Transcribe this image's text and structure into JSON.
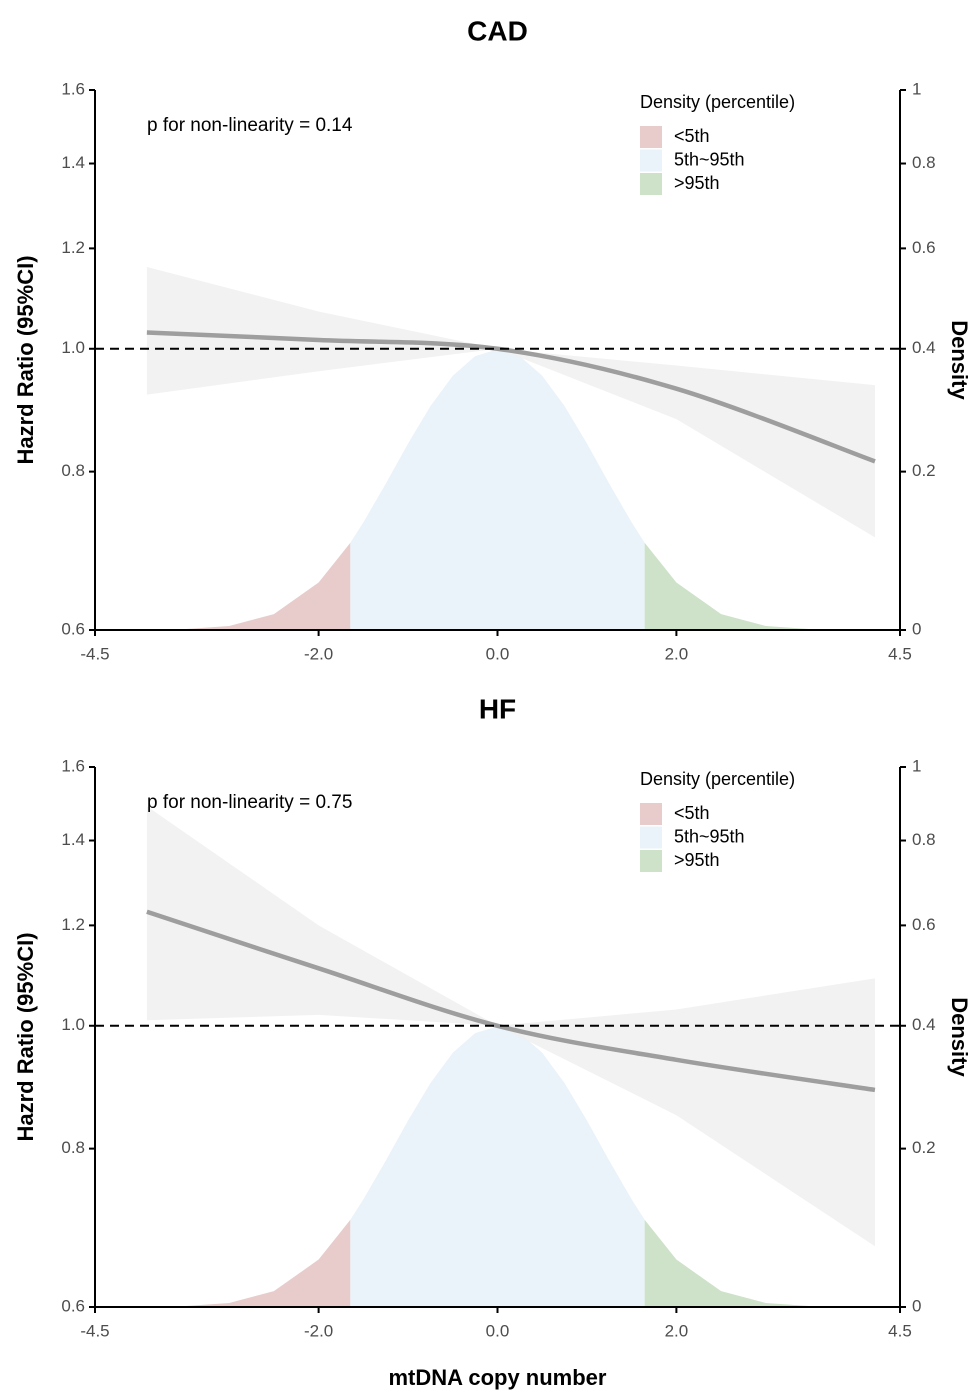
{
  "chart_data": [
    {
      "type": "spline",
      "title": "CAD",
      "annotation": "p for non-linearity = 0.14",
      "ylabel": "Hazrd Ratio (95%CI)",
      "y2label": "Density",
      "legend_title": "Density (percentile)",
      "log_y": true,
      "reference_line": 1,
      "xlim": [
        -4.5,
        4.5
      ],
      "xticks": [
        -4.5,
        {
          "value": -2,
          "label": "-2.0"
        },
        {
          "value": 0,
          "label": "0.0"
        },
        {
          "value": 2,
          "label": "2.0"
        },
        4.5
      ],
      "ylim": [
        0.6,
        1.6
      ],
      "yticks": [
        0.6,
        0.8,
        {
          "value": 1,
          "label": "1.0"
        },
        1.2,
        1.4,
        1.6
      ],
      "y2lim": [
        0,
        1
      ],
      "y2ticks": [
        0,
        0.2,
        0.4,
        0.6,
        0.8,
        1
      ],
      "curve": {
        "color": "#9e9e9e",
        "band_color": "#f0f0f0",
        "x": [
          -3.92,
          -2,
          0,
          2,
          4.22
        ],
        "values": [
          1.03,
          1.016,
          1,
          0.93,
          0.815
        ],
        "lower": [
          0.92,
          0.96,
          1,
          0.88,
          0.71
        ],
        "upper": [
          1.16,
          1.07,
          1,
          0.97,
          0.936
        ]
      },
      "density_series": [
        {
          "name": "<5th",
          "color": "#e8cccc",
          "x": [
            -3.5,
            -3,
            -2.5,
            -2,
            -1.645
          ],
          "values": [
            0.0009,
            0.0044,
            0.0175,
            0.054,
            0.103
          ]
        },
        {
          "name": "5th~95th",
          "color": "#eaf3f9",
          "x": [
            -1.645,
            -1.5,
            -1.25,
            -1,
            -0.75,
            -0.5,
            -0.25,
            0,
            0.25,
            0.5,
            0.75,
            1,
            1.25,
            1.5,
            1.645
          ],
          "values": [
            0.103,
            0.1295,
            0.1826,
            0.242,
            0.3011,
            0.3521,
            0.3867,
            0.3989,
            0.3867,
            0.3521,
            0.3011,
            0.242,
            0.1826,
            0.1295,
            0.103
          ]
        },
        {
          "name": ">95th",
          "color": "#cde2c8",
          "x": [
            1.645,
            2,
            2.5,
            3,
            3.5
          ],
          "values": [
            0.103,
            0.054,
            0.0175,
            0.0044,
            0.0009
          ]
        }
      ]
    },
    {
      "type": "spline",
      "title": "HF",
      "annotation": "p for non-linearity = 0.75",
      "ylabel": "Hazrd Ratio (95%CI)",
      "y2label": "Density",
      "legend_title": "Density (percentile)",
      "xlabel": "mtDNA copy number",
      "log_y": true,
      "reference_line": 1,
      "xlim": [
        -4.5,
        4.5
      ],
      "xticks": [
        -4.5,
        {
          "value": -2,
          "label": "-2.0"
        },
        {
          "value": 0,
          "label": "0.0"
        },
        {
          "value": 2,
          "label": "2.0"
        },
        4.5
      ],
      "ylim": [
        0.6,
        1.6
      ],
      "yticks": [
        0.6,
        0.8,
        {
          "value": 1,
          "label": "1.0"
        },
        1.2,
        1.4,
        1.6
      ],
      "y2lim": [
        0,
        1
      ],
      "y2ticks": [
        0,
        0.2,
        0.4,
        0.6,
        0.8,
        1
      ],
      "curve": {
        "color": "#9e9e9e",
        "band_color": "#f0f0f0",
        "x": [
          -3.92,
          -2,
          0,
          2,
          4.22
        ],
        "values": [
          1.23,
          1.11,
          1,
          0.94,
          0.89
        ],
        "lower": [
          1.01,
          1.02,
          1,
          0.85,
          0.67
        ],
        "upper": [
          1.49,
          1.2,
          1,
          1.03,
          1.09
        ]
      },
      "density_series": [
        {
          "name": "<5th",
          "color": "#e8cccc",
          "x": [
            -3.5,
            -3,
            -2.5,
            -2,
            -1.645
          ],
          "values": [
            0.0009,
            0.0044,
            0.0175,
            0.054,
            0.103
          ]
        },
        {
          "name": "5th~95th",
          "color": "#eaf3f9",
          "x": [
            -1.645,
            -1.5,
            -1.25,
            -1,
            -0.75,
            -0.5,
            -0.25,
            0,
            0.25,
            0.5,
            0.75,
            1,
            1.25,
            1.5,
            1.645
          ],
          "values": [
            0.103,
            0.1295,
            0.1826,
            0.242,
            0.3011,
            0.3521,
            0.3867,
            0.3989,
            0.3867,
            0.3521,
            0.3011,
            0.242,
            0.1826,
            0.1295,
            0.103
          ]
        },
        {
          "name": ">95th",
          "color": "#cde2c8",
          "x": [
            1.645,
            2,
            2.5,
            3,
            3.5
          ],
          "values": [
            0.103,
            0.054,
            0.0175,
            0.0044,
            0.0009
          ]
        }
      ]
    }
  ]
}
